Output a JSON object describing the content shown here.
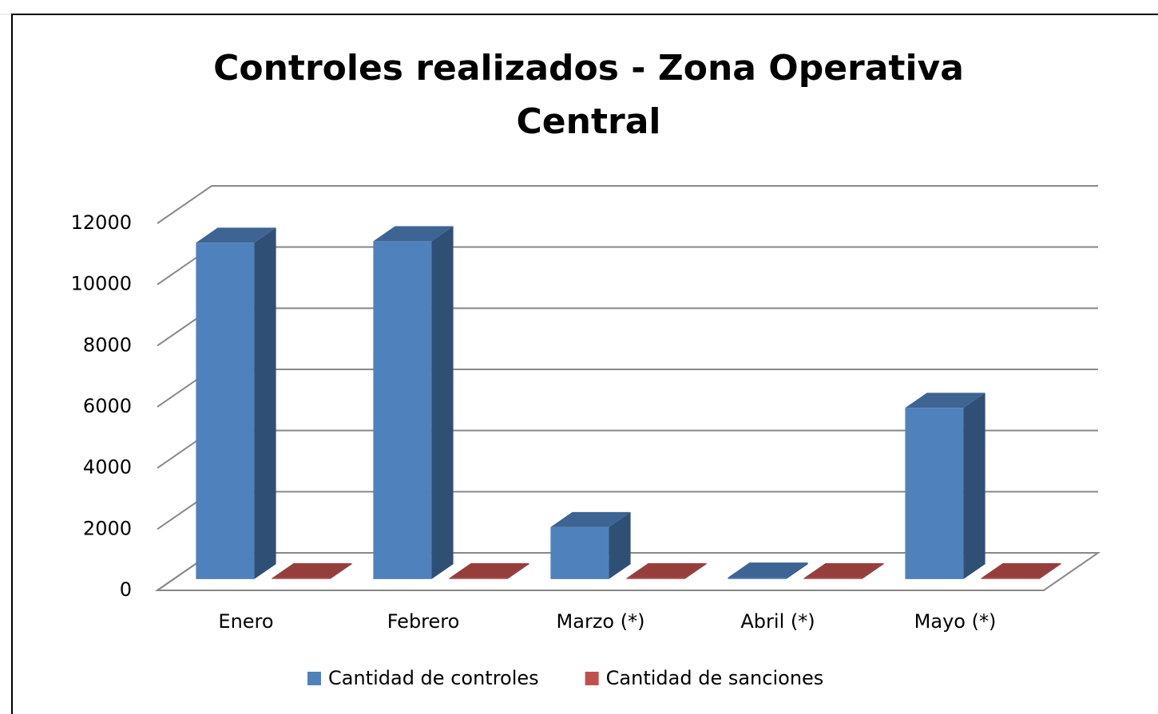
{
  "chart_data": {
    "type": "bar3d",
    "title": "Controles realizados - Zona Operativa Central",
    "categories": [
      "Enero",
      "Febrero",
      "Marzo (*)",
      "Abril (*)",
      "Mayo (*)"
    ],
    "series": [
      {
        "name": "Cantidad de controles",
        "color": "#4f81bd",
        "values": [
          11000,
          11050,
          1700,
          50,
          5600
        ]
      },
      {
        "name": "Cantidad de sanciones",
        "color": "#c0504d",
        "values": [
          30,
          30,
          30,
          30,
          30
        ]
      }
    ],
    "ylim": [
      0,
      12000
    ],
    "yticks": [
      0,
      2000,
      4000,
      6000,
      8000,
      10000,
      12000
    ],
    "grid": true,
    "legend": "bottom"
  }
}
